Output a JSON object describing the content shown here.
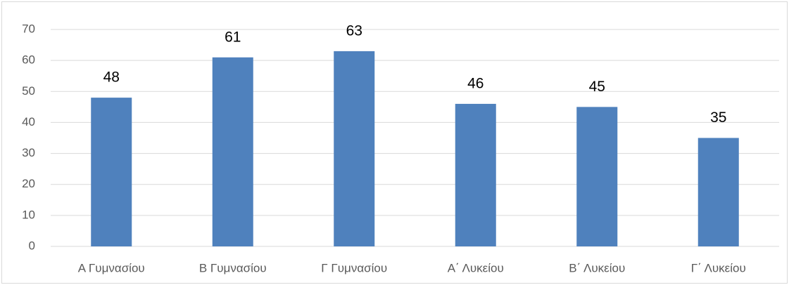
{
  "chart_data": {
    "type": "bar",
    "categories": [
      "Α Γυμνασίου",
      "Β Γυμνασίου",
      "Γ Γυμνασίου",
      "Α΄ Λυκείου",
      "Β΄ Λυκείου",
      "Γ΄ Λυκείου"
    ],
    "values": [
      48,
      61,
      63,
      46,
      45,
      35
    ],
    "color": "#4f81bd",
    "ylim": [
      0,
      70
    ],
    "yticks": [
      0,
      10,
      20,
      30,
      40,
      50,
      60,
      70
    ],
    "grid": true
  }
}
